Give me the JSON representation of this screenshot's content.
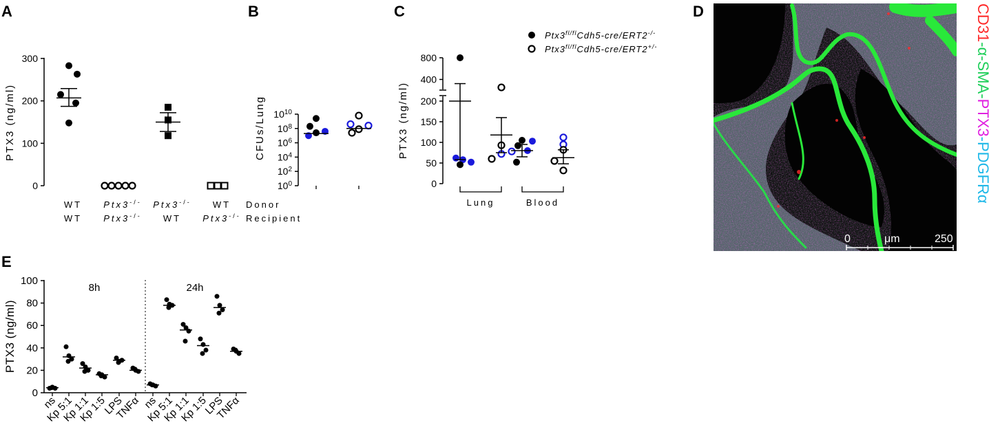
{
  "panels": {
    "a": "A",
    "b": "B",
    "c": "C",
    "d": "D",
    "e": "E"
  },
  "chart_data": [
    {
      "id": "A",
      "type": "scatter",
      "ylabel": "PTX3 (ng/ml)",
      "ylim": [
        0,
        300
      ],
      "yticks": [
        "0",
        "100",
        "200",
        "300"
      ],
      "row_labels": [
        "Donor",
        "Recipient"
      ],
      "groups": [
        {
          "donor": "WT",
          "recipient": "WT",
          "marker": "filled-circle",
          "values": [
            283,
            263,
            215,
            195,
            148
          ],
          "mean": 207,
          "sem_hi": 229,
          "sem_lo": 187
        },
        {
          "donor": "Ptx3",
          "donor_sup": "-/-",
          "recipient": "Ptx3",
          "recipient_sup": "-/-",
          "marker": "open-circle",
          "values": [
            0,
            0,
            0,
            0,
            0
          ],
          "mean": 0
        },
        {
          "donor": "Ptx3",
          "donor_sup": "-/-",
          "recipient": "WT",
          "marker": "filled-square",
          "values": [
            185,
            155,
            118
          ],
          "mean": 150,
          "sem_hi": 172,
          "sem_lo": 128
        },
        {
          "donor": "WT",
          "recipient": "Ptx3",
          "recipient_sup": "-/-",
          "marker": "open-square",
          "values": [
            0,
            0,
            0
          ],
          "mean": 0
        }
      ]
    },
    {
      "id": "B",
      "type": "scatter",
      "ylabel": "CFUs/Lung",
      "yscale": "log",
      "ylim_exp": [
        0,
        10
      ],
      "yticks": [
        {
          "base": "10",
          "exp": "0"
        },
        {
          "base": "10",
          "exp": "2"
        },
        {
          "base": "10",
          "exp": "4"
        },
        {
          "base": "10",
          "exp": "6"
        },
        {
          "base": "10",
          "exp": "8"
        },
        {
          "base": "10",
          "exp": "10"
        }
      ],
      "groups": [
        {
          "points": [
            {
              "exp": 9.4,
              "color": "black",
              "filled": true
            },
            {
              "exp": 8.3,
              "color": "black",
              "filled": true
            },
            {
              "exp": 7.6,
              "color": "#1a1adc",
              "filled": true
            },
            {
              "exp": 7.4,
              "color": "black",
              "filled": true
            },
            {
              "exp": 7.0,
              "color": "#1a1adc",
              "filled": true
            }
          ],
          "median_exp": 7.3
        },
        {
          "points": [
            {
              "exp": 9.8,
              "color": "black",
              "filled": false
            },
            {
              "exp": 8.6,
              "color": "#1a1adc",
              "filled": false
            },
            {
              "exp": 8.4,
              "color": "#1a1adc",
              "filled": false
            },
            {
              "exp": 7.9,
              "color": "black",
              "filled": false
            },
            {
              "exp": 7.4,
              "color": "black",
              "filled": false
            }
          ],
          "median_exp": 8.0
        }
      ]
    },
    {
      "id": "C",
      "type": "scatter",
      "ylabel": "PTX3 (ng/ml)",
      "yticks": [
        "0",
        "50",
        "100",
        "150",
        "200",
        "400",
        "800"
      ],
      "legend": [
        {
          "marker": "filled-circle",
          "text": "Ptx3",
          "sup1": "fl/fl",
          "text2": "Cdh5-cre/ERT2",
          "sup2": "-/-"
        },
        {
          "marker": "open-circle",
          "text": "Ptx3",
          "sup1": "fl/fl",
          "text2": "Cdh5-cre/ERT2",
          "sup2": "+/-"
        }
      ],
      "group_labels": [
        "Lung",
        "Blood"
      ],
      "groups": [
        {
          "points": [
            {
              "v": 800,
              "color": "black",
              "filled": true
            },
            {
              "v": 62,
              "color": "#1a1adc",
              "filled": true
            },
            {
              "v": 58,
              "color": "#1a1adc",
              "filled": true
            },
            {
              "v": 46,
              "color": "black",
              "filled": true
            },
            {
              "v": 52,
              "color": "#1a1adc",
              "filled": true
            }
          ],
          "mean": 200,
          "sem_hi": 350,
          "sem_lo": 58
        },
        {
          "points": [
            {
              "v": 310,
              "color": "black",
              "filled": false
            },
            {
              "v": 93,
              "color": "black",
              "filled": false
            },
            {
              "v": 78,
              "color": "#1a1adc",
              "filled": false
            },
            {
              "v": 72,
              "color": "#1a1adc",
              "filled": false
            },
            {
              "v": 60,
              "color": "black",
              "filled": false
            }
          ],
          "mean": 118,
          "sem_hi": 160,
          "sem_lo": 75
        },
        {
          "points": [
            {
              "v": 105,
              "color": "black",
              "filled": true
            },
            {
              "v": 103,
              "color": "#1a1adc",
              "filled": true
            },
            {
              "v": 92,
              "color": "black",
              "filled": true
            },
            {
              "v": 80,
              "color": "#1a1adc",
              "filled": true
            },
            {
              "v": 52,
              "color": "black",
              "filled": true
            }
          ],
          "mean": 80,
          "sem_hi": 95,
          "sem_lo": 65
        },
        {
          "points": [
            {
              "v": 112,
              "color": "#1a1adc",
              "filled": false
            },
            {
              "v": 95,
              "color": "#1a1adc",
              "filled": false
            },
            {
              "v": 82,
              "color": "black",
              "filled": false
            },
            {
              "v": 55,
              "color": "black",
              "filled": false
            },
            {
              "v": 32,
              "color": "black",
              "filled": false
            }
          ],
          "mean": 63,
          "sem_hi": 82,
          "sem_lo": 48
        }
      ]
    },
    {
      "id": "E",
      "type": "scatter",
      "ylabel": "PTX3 (ng/ml)",
      "ylim": [
        0,
        100
      ],
      "yticks": [
        "0",
        "20",
        "40",
        "60",
        "80",
        "100"
      ],
      "sections": [
        "8h",
        "24h"
      ],
      "categories": [
        "ns",
        "Kp 5:1",
        "Kp 1:1",
        "Kp 1:5",
        "LPS",
        "TNFα",
        "ns",
        "Kp 5:1",
        "Kp 1:1",
        "Kp 1:5",
        "LPS",
        "TNFα"
      ],
      "values": [
        [
          4,
          5,
          4,
          4.5
        ],
        [
          41,
          33,
          30,
          28
        ],
        [
          26,
          23,
          20,
          19
        ],
        [
          17,
          16,
          14,
          15
        ],
        [
          31,
          28,
          29,
          27
        ],
        [
          22,
          20,
          19,
          21
        ],
        [
          8,
          7,
          6,
          7
        ],
        [
          83,
          79,
          78,
          76
        ],
        [
          61,
          58,
          55,
          46
        ],
        [
          48,
          43,
          38,
          35
        ],
        [
          86,
          78,
          74,
          71
        ],
        [
          39,
          37,
          35,
          38
        ]
      ],
      "medians": [
        4.5,
        32,
        22,
        16,
        29,
        20,
        7,
        78,
        56,
        42,
        76,
        37
      ]
    }
  ],
  "micrograph": {
    "stain_labels": [
      {
        "text": "CD31",
        "color": "#ff2a2a"
      },
      {
        "text": "-α-SMA-",
        "color": "#1fcf5a"
      },
      {
        "text": "PTX3",
        "color": "#e020e0"
      },
      {
        "text": "-PDGFRα",
        "color": "#1fb8e8"
      }
    ],
    "scale_start": "0",
    "scale_unit": "μm",
    "scale_end": "250"
  }
}
